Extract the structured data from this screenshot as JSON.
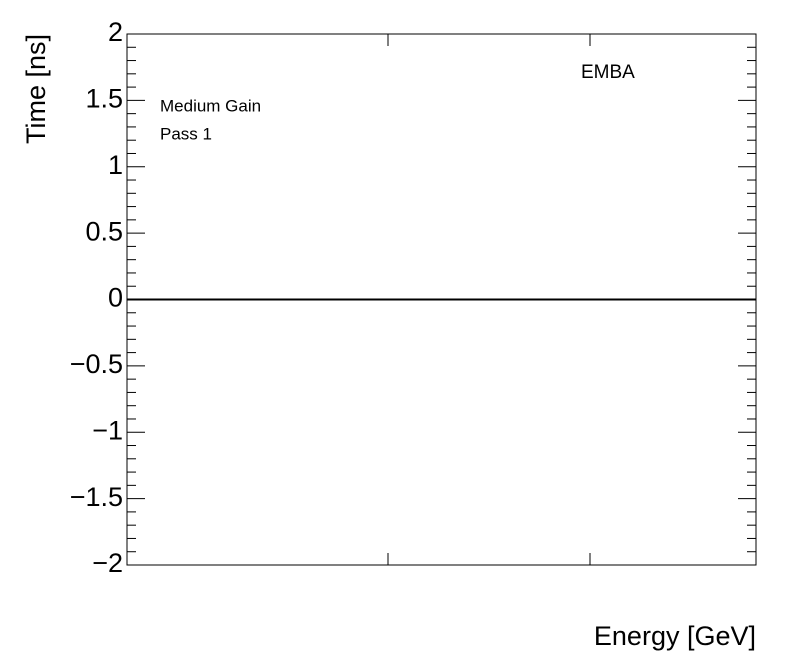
{
  "chart_data": {
    "type": "line",
    "y_label": "Time [ns]",
    "x_label": "Energy [GeV]",
    "annotations": [
      "Medium Gain",
      "Pass 1",
      "EMBA"
    ],
    "ylim": [
      -2,
      2
    ],
    "yticks": [
      {
        "value": -2,
        "label": "−2"
      },
      {
        "value": -1.5,
        "label": "−1.5"
      },
      {
        "value": -1,
        "label": "−1"
      },
      {
        "value": -0.5,
        "label": "−0.5"
      },
      0,
      0.5,
      1,
      1.5,
      2
    ],
    "yminor": 5,
    "reference_line": 0,
    "color": "#000000"
  }
}
